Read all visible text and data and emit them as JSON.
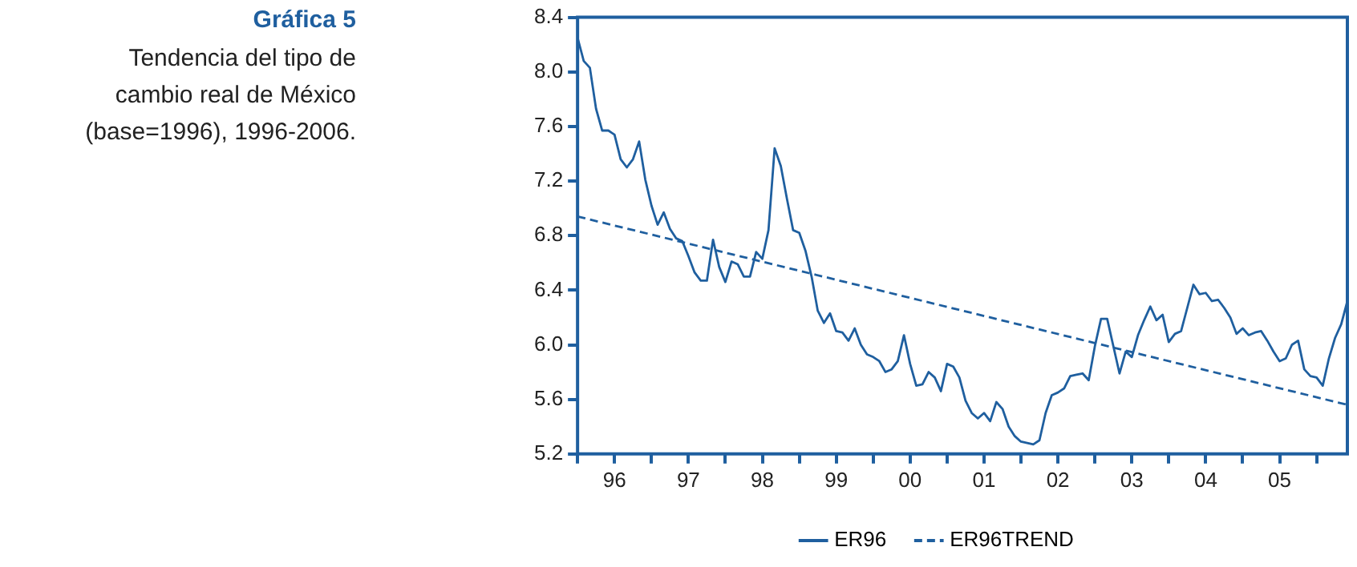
{
  "chart_data": {
    "type": "line",
    "title": "Gráfica 5",
    "subtitle": "Tendencia del tipo de cambio real de México (base=1996), 1996-2006.",
    "x": [
      "1996-01",
      "1996-02",
      "1996-03",
      "1996-04",
      "1996-05",
      "1996-06",
      "1996-07",
      "1996-08",
      "1996-09",
      "1996-10",
      "1996-11",
      "1996-12",
      "1997-01",
      "1997-02",
      "1997-03",
      "1997-04",
      "1997-05",
      "1997-06",
      "1997-07",
      "1997-08",
      "1997-09",
      "1997-10",
      "1997-11",
      "1997-12",
      "1998-01",
      "1998-02",
      "1998-03",
      "1998-04",
      "1998-05",
      "1998-06",
      "1998-07",
      "1998-08",
      "1998-09",
      "1998-10",
      "1998-11",
      "1998-12",
      "1999-01",
      "1999-02",
      "1999-03",
      "1999-04",
      "1999-05",
      "1999-06",
      "1999-07",
      "1999-08",
      "1999-09",
      "1999-10",
      "1999-11",
      "1999-12",
      "2000-01",
      "2000-02",
      "2000-03",
      "2000-04",
      "2000-05",
      "2000-06",
      "2000-07",
      "2000-08",
      "2000-09",
      "2000-10",
      "2000-11",
      "2000-12",
      "2001-01",
      "2001-02",
      "2001-03",
      "2001-04",
      "2001-05",
      "2001-06",
      "2001-07",
      "2001-08",
      "2001-09",
      "2001-10",
      "2001-11",
      "2001-12",
      "2002-01",
      "2002-02",
      "2002-03",
      "2002-04",
      "2002-05",
      "2002-06",
      "2002-07",
      "2002-08",
      "2002-09",
      "2002-10",
      "2002-11",
      "2002-12",
      "2003-01",
      "2003-02",
      "2003-03",
      "2003-04",
      "2003-05",
      "2003-06",
      "2003-07",
      "2003-08",
      "2003-09",
      "2003-10",
      "2003-11",
      "2003-12",
      "2004-01",
      "2004-02",
      "2004-03",
      "2004-04",
      "2004-05",
      "2004-06",
      "2004-07",
      "2004-08",
      "2004-09",
      "2004-10",
      "2004-11",
      "2004-12",
      "2005-01",
      "2005-02",
      "2005-03",
      "2005-04",
      "2005-05",
      "2005-06",
      "2005-07",
      "2005-08",
      "2005-09",
      "2005-10",
      "2005-11",
      "2005-12",
      "2006-01",
      "2006-02",
      "2006-03",
      "2006-04",
      "2006-05",
      "2006-06"
    ],
    "series": [
      {
        "name": "ER96",
        "color": "#1f5f9f",
        "line_style": "solid",
        "values": [
          8.25,
          8.08,
          8.03,
          7.73,
          7.57,
          7.57,
          7.54,
          7.36,
          7.3,
          7.36,
          7.49,
          7.21,
          7.02,
          6.88,
          6.97,
          6.85,
          6.78,
          6.76,
          6.65,
          6.53,
          6.47,
          6.47,
          6.77,
          6.57,
          6.46,
          6.61,
          6.59,
          6.5,
          6.5,
          6.68,
          6.63,
          6.84,
          7.44,
          7.31,
          7.07,
          6.84,
          6.82,
          6.69,
          6.5,
          6.25,
          6.16,
          6.23,
          6.1,
          6.09,
          6.03,
          6.12,
          6.0,
          5.93,
          5.91,
          5.88,
          5.8,
          5.82,
          5.88,
          6.07,
          5.86,
          5.7,
          5.71,
          5.8,
          5.76,
          5.66,
          5.86,
          5.84,
          5.76,
          5.59,
          5.5,
          5.46,
          5.5,
          5.44,
          5.58,
          5.53,
          5.4,
          5.33,
          5.29,
          5.28,
          5.27,
          5.3,
          5.5,
          5.63,
          5.65,
          5.68,
          5.77,
          5.78,
          5.79,
          5.74,
          5.99,
          6.19,
          6.19,
          5.99,
          5.79,
          5.95,
          5.91,
          6.07,
          6.18,
          6.28,
          6.18,
          6.22,
          6.02,
          6.08,
          6.1,
          6.27,
          6.44,
          6.37,
          6.38,
          6.32,
          6.33,
          6.27,
          6.2,
          6.08,
          6.12,
          6.07,
          6.09,
          6.1,
          6.03,
          5.95,
          5.88,
          5.9,
          6.0,
          6.03,
          5.82,
          5.77,
          5.76,
          5.7,
          5.9,
          6.05,
          6.15,
          6.32
        ]
      },
      {
        "name": "ER96TREND",
        "color": "#1f5f9f",
        "line_style": "dashed",
        "x": [
          "1996-01",
          "2006-06"
        ],
        "values": [
          6.94,
          5.56
        ]
      }
    ],
    "xlim": [
      "1996-01",
      "2006-06"
    ],
    "xticks": [
      {
        "value": "1996-01",
        "label": null
      },
      {
        "value": "1996-07",
        "label": "96"
      },
      {
        "value": "1997-01",
        "label": null
      },
      {
        "value": "1997-07",
        "label": "97"
      },
      {
        "value": "1998-01",
        "label": null
      },
      {
        "value": "1998-07",
        "label": "98"
      },
      {
        "value": "1999-01",
        "label": null
      },
      {
        "value": "1999-07",
        "label": "99"
      },
      {
        "value": "2000-01",
        "label": null
      },
      {
        "value": "2000-07",
        "label": "00"
      },
      {
        "value": "2001-01",
        "label": null
      },
      {
        "value": "2001-07",
        "label": "01"
      },
      {
        "value": "2002-01",
        "label": null
      },
      {
        "value": "2002-07",
        "label": "02"
      },
      {
        "value": "2003-01",
        "label": null
      },
      {
        "value": "2003-07",
        "label": "03"
      },
      {
        "value": "2004-01",
        "label": null
      },
      {
        "value": "2004-07",
        "label": "04"
      },
      {
        "value": "2005-01",
        "label": null
      },
      {
        "value": "2005-07",
        "label": "05"
      },
      {
        "value": "2006-01",
        "label": null
      }
    ],
    "ylim": [
      5.2,
      8.4
    ],
    "yticks": [
      5.2,
      5.6,
      {
        "value": 6,
        "label": "6.0"
      },
      6.4,
      6.8,
      7.2,
      7.6,
      {
        "value": 8,
        "label": "8.0"
      },
      8.4
    ],
    "grid": false,
    "legend": "bottom",
    "marker": "none"
  }
}
